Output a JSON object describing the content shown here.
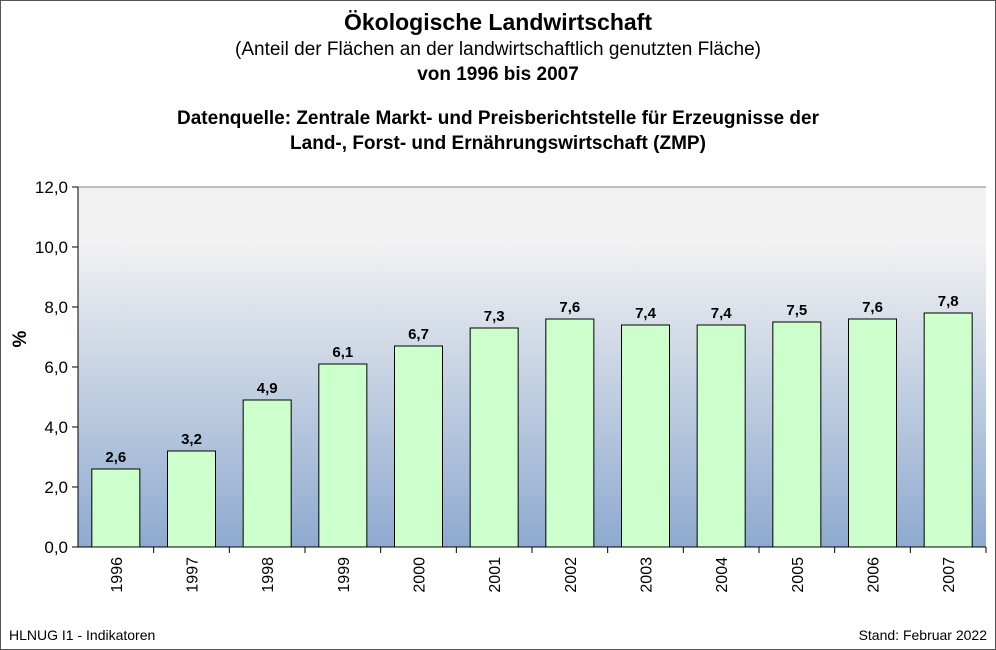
{
  "header": {
    "title": "Ökologische Landwirtschaft",
    "subtitle": "(Anteil der Flächen an der landwirtschaftlich genutzten Fläche)",
    "range": "von 1996 bis 2007",
    "source_line1": "Datenquelle: Zentrale Markt- und Preisberichtstelle für Erzeugnisse der",
    "source_line2": "Land-, Forst- und Ernährungswirtschaft (ZMP)"
  },
  "footer": {
    "left": "HLNUG I1 - Indikatoren",
    "right": "Stand: Februar 2022"
  },
  "chart_data": {
    "type": "bar",
    "title": "Ökologische Landwirtschaft",
    "xlabel": "",
    "ylabel": "%",
    "ylim": [
      0,
      12
    ],
    "yticks": [
      "0,0",
      "2,0",
      "4,0",
      "6,0",
      "8,0",
      "10,0",
      "12,0"
    ],
    "grid": false,
    "categories": [
      "1996",
      "1997",
      "1998",
      "1999",
      "2000",
      "2001",
      "2002",
      "2003",
      "2004",
      "2005",
      "2006",
      "2007"
    ],
    "values": [
      2.6,
      3.2,
      4.9,
      6.1,
      6.7,
      7.3,
      7.6,
      7.4,
      7.4,
      7.5,
      7.6,
      7.8
    ],
    "data_labels": [
      "2,6",
      "3,2",
      "4,9",
      "6,1",
      "6,7",
      "7,3",
      "7,6",
      "7,4",
      "7,4",
      "7,5",
      "7,6",
      "7,8"
    ],
    "colors": {
      "bar_fill": "#ccffcc",
      "bar_stroke": "#000000",
      "plot_bg_top": "#f2f2f2",
      "plot_bg_bottom": "#8eaad0"
    }
  }
}
